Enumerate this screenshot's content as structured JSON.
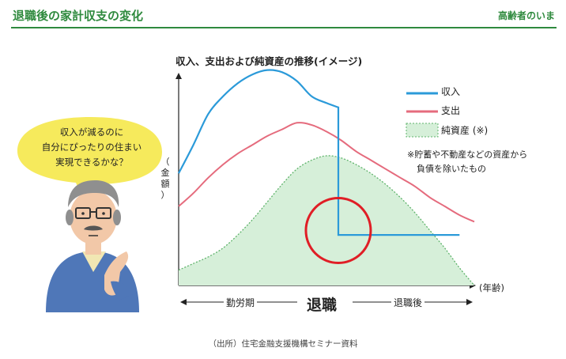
{
  "header": {
    "title": "退職後の家計収支の変化",
    "brand": "高齢者のいま"
  },
  "speech_bubble": {
    "lines": [
      "収入が減るのに",
      "自分にぴったりの住まい",
      "実現できるかな？"
    ]
  },
  "legend_note": [
    "※貯蓄や不動産などの資産から",
    "負債を除いたもの"
  ],
  "phases": {
    "working": "勤労期",
    "retirement": "退職",
    "post_retirement": "退職後"
  },
  "source": "（出所）住宅金融支援機構セミナー資料",
  "colors": {
    "income": "#2b9ad9",
    "expenses": "#e56b7d",
    "net_assets_fill": "#d6efd9",
    "net_assets_edge": "#5fb36b",
    "highlight_circle": "#e01e26",
    "header_green": "#2f8a3e"
  },
  "chart_data": {
    "type": "line",
    "title": "収入、支出および純資産の推移(イメージ)",
    "ylabel": "（金額）",
    "xlabel": "(年齢)",
    "x_ticks": [],
    "y_ticks": [],
    "grid": false,
    "legend_position": "top-right",
    "x": [
      0,
      5,
      10,
      15,
      20,
      25,
      30,
      35,
      40,
      45,
      50,
      55,
      60,
      65,
      70,
      75,
      80,
      85,
      90,
      95,
      100
    ],
    "retirement_x": 54,
    "series": [
      {
        "name": "収入",
        "style": "line",
        "values": [
          51,
          64,
          78,
          86,
          92,
          96,
          98,
          97,
          93,
          86,
          83,
          23,
          23,
          23,
          23,
          23,
          23,
          23,
          23,
          23,
          null
        ]
      },
      {
        "name": "支出",
        "style": "line",
        "values": [
          36,
          42,
          49,
          55,
          60,
          64,
          68,
          71,
          74,
          73,
          70,
          66,
          61,
          57,
          53,
          49,
          45,
          40,
          36,
          32,
          29
        ]
      },
      {
        "name": "純資産 (※)",
        "style": "area",
        "values": [
          7,
          10,
          13,
          17,
          23,
          30,
          38,
          46,
          53,
          57,
          59,
          58,
          55,
          51,
          46,
          40,
          33,
          25,
          17,
          8,
          0
        ]
      }
    ],
    "annotation": {
      "type": "circle",
      "x": 54,
      "y": 25,
      "meaning": "retirement income drop"
    }
  }
}
